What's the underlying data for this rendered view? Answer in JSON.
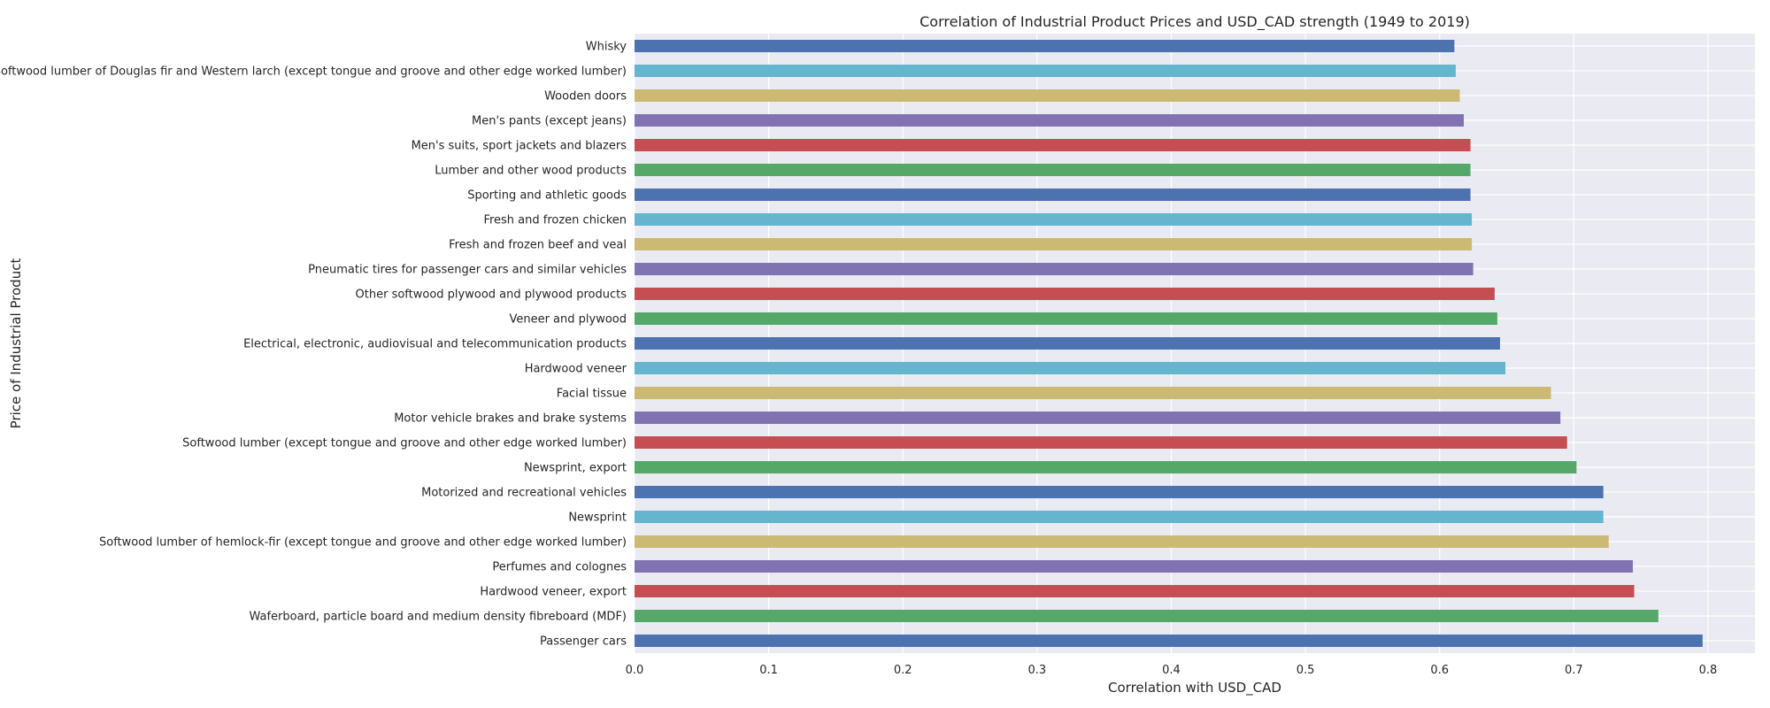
{
  "chart_data": {
    "type": "bar",
    "orientation": "horizontal",
    "title": "Correlation of Industrial Product Prices and USD_CAD strength (1949 to 2019)",
    "xlabel": "Correlation with USD_CAD",
    "ylabel": "Price of Industrial Product",
    "xlim": [
      0,
      0.835
    ],
    "x_ticks": [
      "0.0",
      "0.1",
      "0.2",
      "0.3",
      "0.4",
      "0.5",
      "0.6",
      "0.7",
      "0.8"
    ],
    "grid": true,
    "categories": [
      "Passenger cars",
      "Waferboard, particle board and medium density fibreboard (MDF)",
      "Hardwood veneer, export",
      "Perfumes and colognes",
      "Softwood lumber of hemlock-fir (except tongue and groove and other edge worked lumber)",
      "Newsprint",
      "Motorized and recreational vehicles",
      "Newsprint, export",
      "Softwood lumber (except tongue and groove and other edge worked lumber)",
      "Motor vehicle brakes and brake systems",
      "Facial tissue",
      "Hardwood veneer",
      "Electrical, electronic, audiovisual and telecommunication products",
      "Veneer and plywood",
      "Other softwood plywood and plywood products",
      "Pneumatic tires for passenger cars and similar vehicles",
      "Fresh and frozen beef and veal",
      "Fresh and frozen chicken",
      "Sporting and athletic goods",
      "Lumber and other wood products",
      "Men's suits, sport jackets and blazers",
      "Men's pants (except jeans)",
      "Wooden doors",
      "Softwood lumber of Douglas fir and Western larch (except tongue and groove and other edge worked lumber)",
      "Whisky"
    ],
    "values": [
      0.796,
      0.763,
      0.745,
      0.744,
      0.726,
      0.722,
      0.722,
      0.702,
      0.695,
      0.69,
      0.683,
      0.649,
      0.645,
      0.643,
      0.641,
      0.625,
      0.624,
      0.624,
      0.623,
      0.623,
      0.623,
      0.618,
      0.615,
      0.612,
      0.611
    ],
    "bar_colors": [
      "#4c72b0",
      "#55a868",
      "#c44e52",
      "#8172b2",
      "#ccb974",
      "#64b5cd"
    ]
  }
}
